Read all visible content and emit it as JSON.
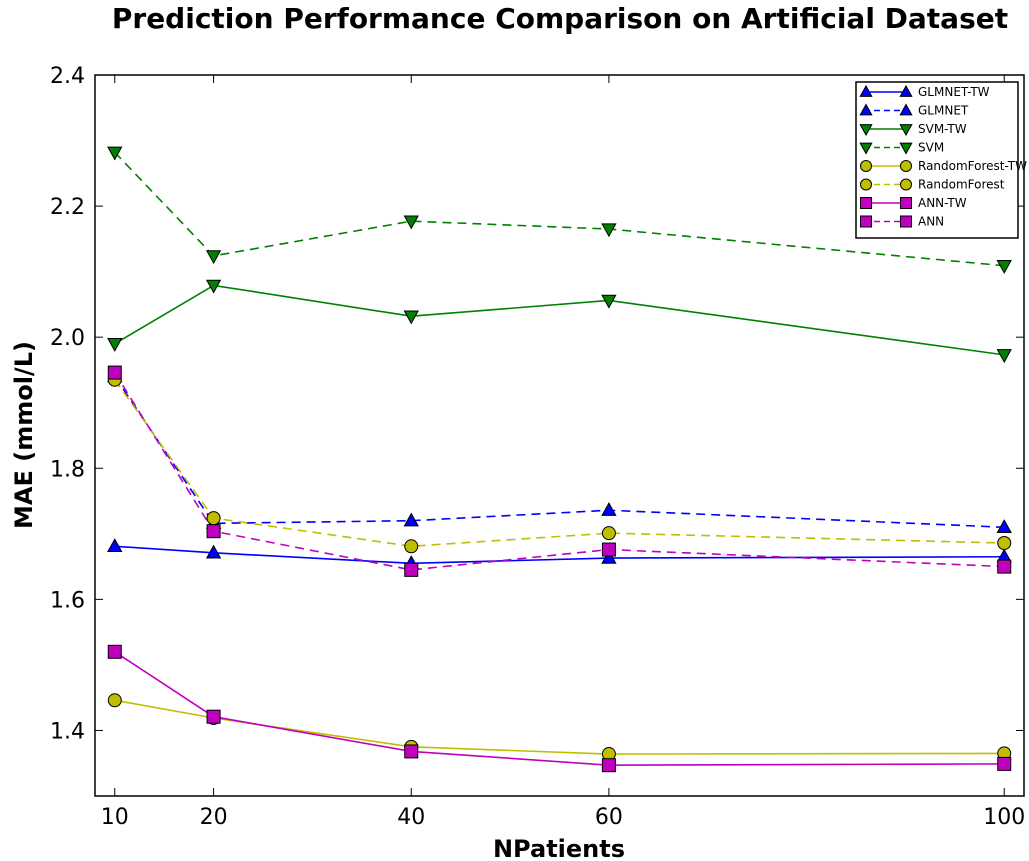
{
  "chart_data": {
    "type": "line",
    "title": "Prediction Performance Comparison on Artificial Dataset",
    "xlabel": "NPatients",
    "ylabel": "MAE (mmol/L)",
    "x": [
      10,
      20,
      40,
      60,
      100
    ],
    "xlim": [
      8,
      102
    ],
    "ylim": [
      1.3,
      2.4
    ],
    "xticks": [
      10,
      20,
      40,
      60,
      100
    ],
    "yticks": [
      1.4,
      1.6,
      1.8,
      2.0,
      2.2,
      2.4
    ],
    "xtick_labels": [
      "10",
      "20",
      "40",
      "60",
      "100"
    ],
    "ytick_labels": [
      "1.4",
      "1.6",
      "1.8",
      "2.0",
      "2.2",
      "2.4"
    ],
    "grid": false,
    "legend_position": "top-right",
    "series": [
      {
        "name": "GLMNET-TW",
        "color": "#0000ff",
        "linestyle": "solid",
        "marker": "triangle-up",
        "values": [
          1.681,
          1.671,
          1.655,
          1.663,
          1.665
        ]
      },
      {
        "name": "GLMNET",
        "color": "#0000ff",
        "linestyle": "dashed",
        "marker": "triangle-up",
        "values": [
          1.94,
          1.716,
          1.72,
          1.736,
          1.71
        ]
      },
      {
        "name": "SVM-TW",
        "color": "#008000",
        "linestyle": "solid",
        "marker": "triangle-down",
        "values": [
          1.99,
          2.079,
          2.032,
          2.056,
          1.973
        ]
      },
      {
        "name": "SVM",
        "color": "#008000",
        "linestyle": "dashed",
        "marker": "triangle-down",
        "values": [
          2.282,
          2.124,
          2.177,
          2.165,
          2.109
        ]
      },
      {
        "name": "RandomForest-TW",
        "color": "#bfbf00",
        "linestyle": "solid",
        "marker": "circle",
        "values": [
          1.446,
          1.419,
          1.375,
          1.364,
          1.365
        ]
      },
      {
        "name": "RandomForest",
        "color": "#bfbf00",
        "linestyle": "dashed",
        "marker": "circle",
        "values": [
          1.935,
          1.724,
          1.681,
          1.701,
          1.686
        ]
      },
      {
        "name": "ANN-TW",
        "color": "#bf00bf",
        "linestyle": "solid",
        "marker": "square",
        "values": [
          1.52,
          1.421,
          1.368,
          1.347,
          1.349
        ]
      },
      {
        "name": "ANN",
        "color": "#bf00bf",
        "linestyle": "dashed",
        "marker": "square",
        "values": [
          1.946,
          1.704,
          1.645,
          1.676,
          1.65
        ]
      }
    ]
  }
}
